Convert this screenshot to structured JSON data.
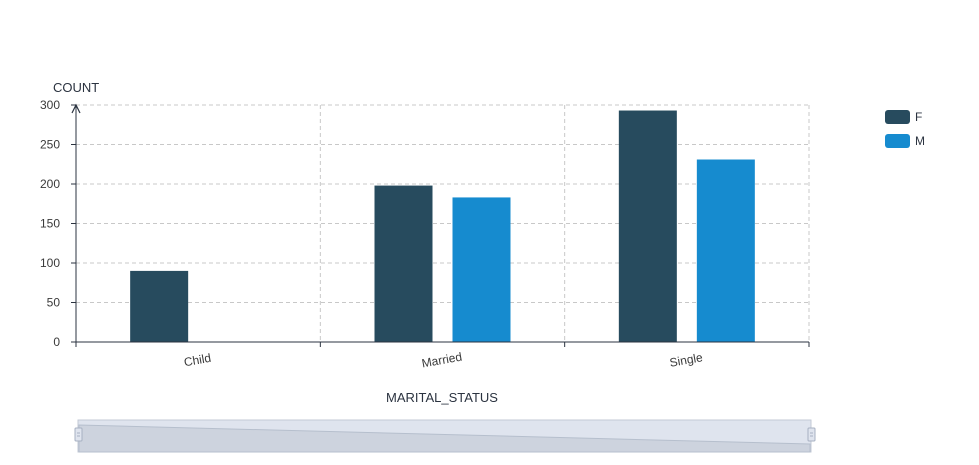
{
  "chart_data": {
    "type": "bar",
    "categories": [
      "Child",
      "Married",
      "Single"
    ],
    "series": [
      {
        "name": "F",
        "values": [
          90,
          198,
          293
        ]
      },
      {
        "name": "M",
        "values": [
          0,
          183,
          231
        ]
      }
    ],
    "title": "",
    "xlabel": "MARITAL_STATUS",
    "ylabel": "COUNT",
    "ylim": [
      0,
      300
    ],
    "yticks": [
      "0",
      "50",
      "100",
      "150",
      "200",
      "250",
      "300"
    ],
    "grid": true,
    "legend_position": "top-right",
    "colors": {
      "F": "#274b5e",
      "M": "#168bcf",
      "axis": "#2b3340",
      "grid": "#c8c8c8",
      "zoom_track": "#dfe4ee",
      "zoom_fill": "#cdd3de"
    },
    "data_zoom": {
      "start": 0,
      "end": 100
    }
  }
}
